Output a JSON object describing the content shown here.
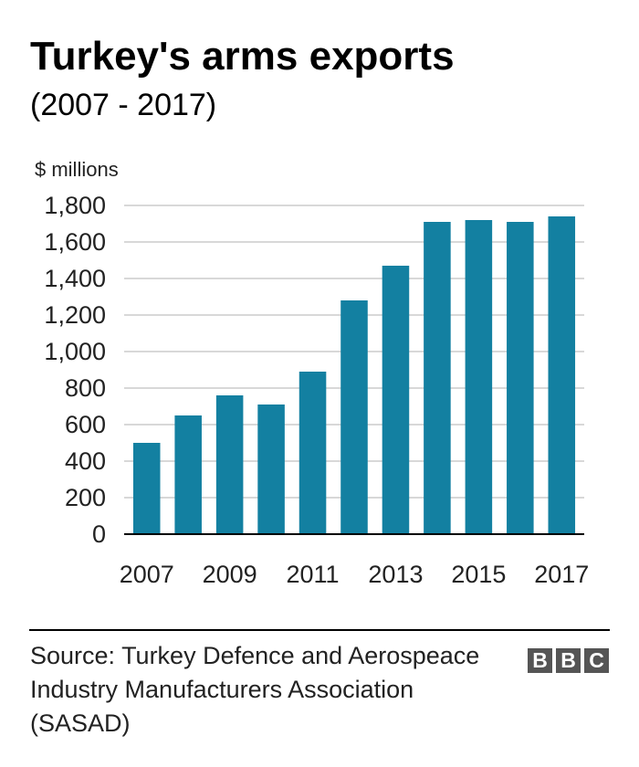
{
  "header": {
    "title": "Turkey's arms exports",
    "subtitle": "(2007 - 2017)"
  },
  "footer": {
    "source": "Source: Turkey Defence and Aerospeace Industry Manufacturers Association (SASAD)",
    "logo_letters": [
      "B",
      "B",
      "C"
    ]
  },
  "colors": {
    "bar": "#1380A1",
    "grid": "#cbcbcb",
    "axis": "#000000",
    "text": "#222222",
    "logo_bg": "#555555"
  },
  "chart_data": {
    "type": "bar",
    "title": "Turkey's arms exports",
    "subtitle": "(2007 - 2017)",
    "ylabel": "$ millions",
    "xlabel": "",
    "categories": [
      "2007",
      "2008",
      "2009",
      "2010",
      "2011",
      "2012",
      "2013",
      "2014",
      "2015",
      "2016",
      "2017"
    ],
    "values": [
      500,
      650,
      760,
      710,
      890,
      1280,
      1470,
      1710,
      1720,
      1710,
      1740
    ],
    "x_tick_labels": [
      "2007",
      "2009",
      "2011",
      "2013",
      "2015",
      "2017"
    ],
    "y_ticks": [
      0,
      200,
      400,
      600,
      800,
      1000,
      1200,
      1400,
      1600,
      1800
    ],
    "y_tick_labels": [
      "0",
      "200",
      "400",
      "600",
      "800",
      "1,000",
      "1,200",
      "1,400",
      "1,600",
      "1,800"
    ],
    "ylim": [
      0,
      1800
    ],
    "grid": true,
    "legend": "none"
  }
}
